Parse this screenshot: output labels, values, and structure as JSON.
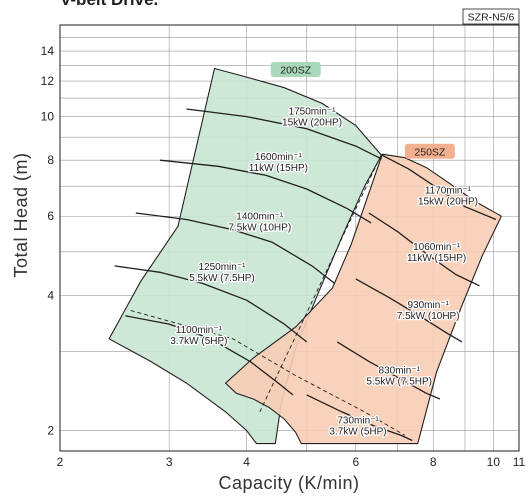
{
  "title": "V-belt Drive.",
  "badge": "SZR-N5/6",
  "chart_data": {
    "type": "area",
    "xlabel": "Capacity (K/min)",
    "ylabel": "Total Head (m)",
    "x_scale": "log",
    "y_scale": "log",
    "xlim": [
      2,
      11
    ],
    "ylim": [
      1.8,
      16
    ],
    "x_ticks": [
      "2",
      "3",
      "4",
      "6",
      "8",
      "10",
      "11"
    ],
    "x_tick_values": [
      2,
      3,
      4,
      6,
      8,
      10,
      11
    ],
    "y_ticks": [
      "2",
      "4",
      "6",
      "8",
      "10",
      "12",
      "14"
    ],
    "y_tick_values": [
      2,
      4,
      6,
      8,
      10,
      12,
      14
    ],
    "grid": true,
    "colors": {
      "200SZ": "#c9e6d4",
      "250SZ": "#f8cdb5",
      "curve": "#231f20",
      "grid": "#9a9a9a"
    },
    "series": [
      {
        "name": "200SZ",
        "label_at": [
          4.8,
          12.7
        ],
        "region": [
          [
            3.55,
            12.8
          ],
          [
            4.0,
            12.25
          ],
          [
            4.6,
            11.6
          ],
          [
            5.3,
            10.7
          ],
          [
            6.0,
            9.55
          ],
          [
            6.6,
            8.2
          ],
          [
            6.2,
            7.0
          ],
          [
            5.7,
            5.4
          ],
          [
            5.2,
            4.0
          ],
          [
            4.8,
            3.05
          ],
          [
            4.55,
            2.3
          ],
          [
            4.45,
            1.87
          ],
          [
            4.15,
            1.87
          ],
          [
            4.0,
            2.0
          ],
          [
            3.7,
            2.2
          ],
          [
            3.2,
            2.55
          ],
          [
            2.8,
            2.85
          ],
          [
            2.4,
            3.2
          ],
          [
            2.7,
            4.3
          ],
          [
            3.1,
            5.7
          ],
          [
            3.55,
            12.8
          ]
        ],
        "curves": [
          {
            "speed": "1750min⁻¹",
            "power": "15kW (20HP)",
            "label_at": [
              5.1,
              10.1
            ],
            "points": [
              [
                3.2,
                10.4
              ],
              [
                4.0,
                10.0
              ],
              [
                5.0,
                9.4
              ],
              [
                6.0,
                8.6
              ],
              [
                6.6,
                8.05
              ]
            ]
          },
          {
            "speed": "1600min⁻¹",
            "power": "11kW (15HP)",
            "label_at": [
              4.5,
              8.0
            ],
            "points": [
              [
                2.9,
                8.0
              ],
              [
                3.6,
                7.75
              ],
              [
                4.3,
                7.4
              ],
              [
                5.0,
                6.9
              ],
              [
                5.8,
                6.25
              ],
              [
                6.35,
                5.8
              ]
            ]
          },
          {
            "speed": "1400min⁻¹",
            "power": "7.5kW (10HP)",
            "label_at": [
              4.2,
              5.9
            ],
            "points": [
              [
                2.65,
                6.1
              ],
              [
                3.2,
                5.9
              ],
              [
                3.8,
                5.6
              ],
              [
                4.4,
                5.25
              ],
              [
                5.1,
                4.65
              ],
              [
                5.55,
                4.25
              ]
            ]
          },
          {
            "speed": "1250min⁻¹",
            "power": "5.5kW (7.5HP)",
            "label_at": [
              3.65,
              4.55
            ],
            "points": [
              [
                2.45,
                4.65
              ],
              [
                2.9,
                4.5
              ],
              [
                3.4,
                4.25
              ],
              [
                4.0,
                3.9
              ],
              [
                4.6,
                3.45
              ],
              [
                5.0,
                3.15
              ]
            ]
          },
          {
            "speed": "1100min⁻¹",
            "power": "3.7kW (5HP)",
            "label_at": [
              3.35,
              3.3
            ],
            "points": [
              [
                2.55,
                3.6
              ],
              [
                3.0,
                3.45
              ],
              [
                3.5,
                3.2
              ],
              [
                4.05,
                2.85
              ],
              [
                4.5,
                2.55
              ],
              [
                4.75,
                2.4
              ]
            ]
          }
        ]
      },
      {
        "name": "250SZ",
        "label_at": [
          7.9,
          8.35
        ],
        "region": [
          [
            6.62,
            8.25
          ],
          [
            7.2,
            8.1
          ],
          [
            7.8,
            7.7
          ],
          [
            8.5,
            7.1
          ],
          [
            9.3,
            6.5
          ],
          [
            10.3,
            6.0
          ],
          [
            9.6,
            4.9
          ],
          [
            8.9,
            3.8
          ],
          [
            8.1,
            2.7
          ],
          [
            7.55,
            1.87
          ],
          [
            4.9,
            1.87
          ],
          [
            4.8,
            1.98
          ],
          [
            4.6,
            2.12
          ],
          [
            4.35,
            2.25
          ],
          [
            4.1,
            2.35
          ],
          [
            3.85,
            2.42
          ],
          [
            3.7,
            2.55
          ],
          [
            4.1,
            2.9
          ],
          [
            4.8,
            3.4
          ],
          [
            5.5,
            4.15
          ],
          [
            5.9,
            5.2
          ],
          [
            6.62,
            8.25
          ]
        ],
        "curves": [
          {
            "speed": "1170min⁻¹",
            "power": "15kW (20HP)",
            "label_at": [
              8.45,
              6.75
            ],
            "points": [
              [
                6.62,
                8.2
              ],
              [
                7.3,
                7.65
              ],
              [
                8.1,
                6.95
              ],
              [
                9.0,
                6.3
              ],
              [
                10.1,
                5.9
              ]
            ]
          },
          {
            "speed": "1060min⁻¹",
            "power": "11kW (15HP)",
            "label_at": [
              8.1,
              5.05
            ],
            "points": [
              [
                6.3,
                6.1
              ],
              [
                7.0,
                5.55
              ],
              [
                7.8,
                4.95
              ],
              [
                8.7,
                4.45
              ],
              [
                9.5,
                4.2
              ]
            ]
          },
          {
            "speed": "930min⁻¹",
            "power": "7.5kW (10HP)",
            "label_at": [
              7.85,
              3.75
            ],
            "points": [
              [
                6.0,
                4.35
              ],
              [
                6.8,
                3.95
              ],
              [
                7.6,
                3.6
              ],
              [
                8.4,
                3.3
              ],
              [
                8.9,
                3.15
              ]
            ]
          },
          {
            "speed": "830min⁻¹",
            "power": "5.5kW (7.5HP)",
            "label_at": [
              7.05,
              2.68
            ],
            "points": [
              [
                5.6,
                3.15
              ],
              [
                6.3,
                2.85
              ],
              [
                7.1,
                2.6
              ],
              [
                7.8,
                2.42
              ],
              [
                8.2,
                2.35
              ]
            ]
          },
          {
            "speed": "730min⁻¹",
            "power": "3.7kW (5HP)",
            "label_at": [
              6.05,
              2.07
            ],
            "points": [
              [
                5.0,
                2.4
              ],
              [
                5.7,
                2.2
              ],
              [
                6.4,
                2.05
              ],
              [
                7.1,
                1.95
              ],
              [
                7.4,
                1.9
              ]
            ]
          }
        ]
      }
    ],
    "boundary_lines": [
      [
        [
          4.2,
          2.2
        ],
        [
          5.2,
          4.1
        ],
        [
          6.6,
          8.25
        ]
      ],
      [
        [
          2.6,
          3.7
        ],
        [
          3.8,
          3.2
        ],
        [
          4.8,
          2.65
        ],
        [
          6.2,
          2.2
        ],
        [
          7.2,
          1.95
        ]
      ]
    ]
  }
}
